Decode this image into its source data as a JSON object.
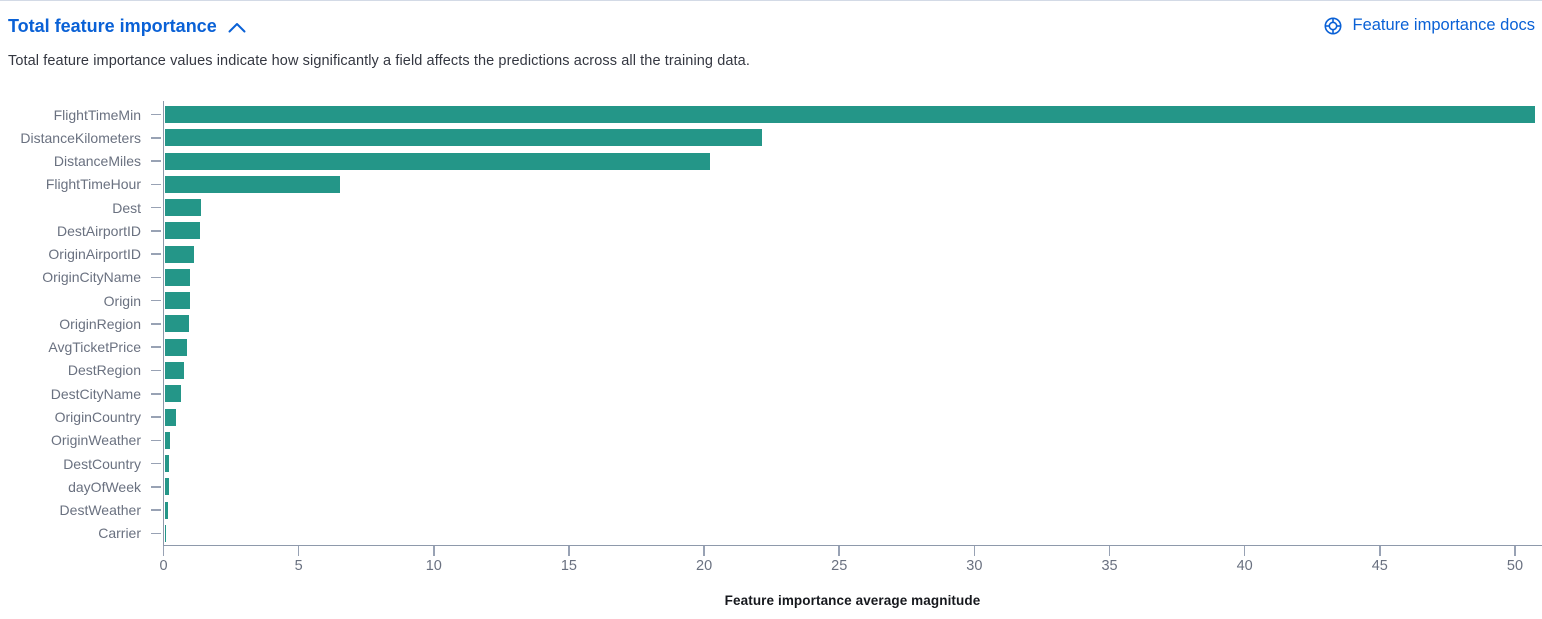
{
  "header": {
    "title": "Total feature importance",
    "collapse_icon": "chevron-up-icon",
    "docs_link_label": "Feature importance docs",
    "docs_link_icon": "documentation-icon",
    "description": "Total feature importance values indicate how significantly a field affects the predictions across all the training data."
  },
  "colors": {
    "link_blue": "#0a61d6",
    "bar_teal": "#249688",
    "axis_gray": "#8e99ab",
    "tick_gray": "#98a2b4",
    "label_gray": "#6a7180",
    "description_text": "#343741",
    "axis_title_text": "#16181d",
    "panel_border": "#d3dae6"
  },
  "chart_data": {
    "type": "bar",
    "orientation": "horizontal",
    "title": "Total feature importance",
    "xlabel": "Feature importance average magnitude",
    "ylabel": "",
    "xlim": [
      0,
      51
    ],
    "xticks": [
      0,
      5,
      10,
      15,
      20,
      25,
      30,
      35,
      40,
      45,
      50
    ],
    "grid": false,
    "legend": "none",
    "bar_color": "#249688",
    "categories": [
      "FlightTimeMin",
      "DistanceKilometers",
      "DistanceMiles",
      "FlightTimeHour",
      "Dest",
      "DestAirportID",
      "OriginAirportID",
      "OriginCityName",
      "Origin",
      "OriginRegion",
      "AvgTicketPrice",
      "DestRegion",
      "DestCityName",
      "OriginCountry",
      "OriginWeather",
      "DestCountry",
      "dayOfWeek",
      "DestWeather",
      "Carrier"
    ],
    "values": [
      50.7,
      22.1,
      20.2,
      6.5,
      1.35,
      1.31,
      1.08,
      0.96,
      0.93,
      0.89,
      0.85,
      0.72,
      0.6,
      0.43,
      0.21,
      0.18,
      0.16,
      0.14,
      0.07
    ]
  }
}
